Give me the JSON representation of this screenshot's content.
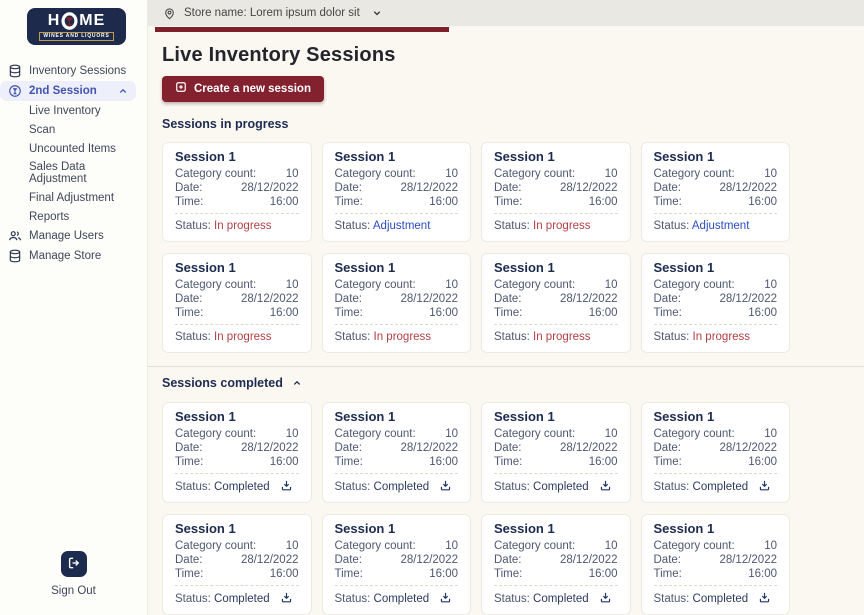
{
  "logo": {
    "title": "HOME",
    "subtitle": "WINES AND LIQUORS"
  },
  "header": {
    "store_label": "Store name: Lorem ipsum dolor sit"
  },
  "sidebar": {
    "items": [
      {
        "label": "Inventory Sessions",
        "icon": "database-icon"
      },
      {
        "label": "2nd Session",
        "icon": "session-icon",
        "active": true,
        "chevron": "up"
      },
      {
        "label": "Live Inventory",
        "child": true
      },
      {
        "label": "Scan",
        "child": true
      },
      {
        "label": "Uncounted Items",
        "child": true
      },
      {
        "label": "Sales Data Adjustment",
        "child": true
      },
      {
        "label": "Final Adjustment",
        "child": true
      },
      {
        "label": "Reports",
        "child": true
      },
      {
        "label": "Manage Users",
        "icon": "users-icon"
      },
      {
        "label": "Manage Store",
        "icon": "database-icon"
      }
    ],
    "sign_out_label": "Sign Out"
  },
  "main": {
    "title": "Live Inventory Sessions",
    "create_button_label": "Create a new session",
    "card_labels": {
      "category": "Category count:",
      "date": "Date:",
      "time": "Time:",
      "status": "Status:"
    },
    "sections": [
      {
        "title": "Sessions in progress",
        "collapsible": false,
        "cards": [
          {
            "title": "Session 1",
            "category": "10",
            "date": "28/12/2022",
            "time": "16:00",
            "status": "In progress",
            "status_type": "red",
            "download": false
          },
          {
            "title": "Session 1",
            "category": "10",
            "date": "28/12/2022",
            "time": "16:00",
            "status": "Adjustment",
            "status_type": "blue",
            "download": false
          },
          {
            "title": "Session 1",
            "category": "10",
            "date": "28/12/2022",
            "time": "16:00",
            "status": "In progress",
            "status_type": "red",
            "download": false
          },
          {
            "title": "Session 1",
            "category": "10",
            "date": "28/12/2022",
            "time": "16:00",
            "status": "Adjustment",
            "status_type": "blue",
            "download": false
          },
          {
            "title": "Session 1",
            "category": "10",
            "date": "28/12/2022",
            "time": "16:00",
            "status": "In progress",
            "status_type": "red",
            "download": false
          },
          {
            "title": "Session 1",
            "category": "10",
            "date": "28/12/2022",
            "time": "16:00",
            "status": "In progress",
            "status_type": "red",
            "download": false
          },
          {
            "title": "Session 1",
            "category": "10",
            "date": "28/12/2022",
            "time": "16:00",
            "status": "In progress",
            "status_type": "red",
            "download": false
          },
          {
            "title": "Session 1",
            "category": "10",
            "date": "28/12/2022",
            "time": "16:00",
            "status": "In progress",
            "status_type": "red",
            "download": false
          }
        ]
      },
      {
        "title": "Sessions completed",
        "collapsible": true,
        "cards": [
          {
            "title": "Session 1",
            "category": "10",
            "date": "28/12/2022",
            "time": "16:00",
            "status": "Completed",
            "status_type": "navy",
            "download": true
          },
          {
            "title": "Session 1",
            "category": "10",
            "date": "28/12/2022",
            "time": "16:00",
            "status": "Completed",
            "status_type": "navy",
            "download": true
          },
          {
            "title": "Session 1",
            "category": "10",
            "date": "28/12/2022",
            "time": "16:00",
            "status": "Completed",
            "status_type": "navy",
            "download": true
          },
          {
            "title": "Session 1",
            "category": "10",
            "date": "28/12/2022",
            "time": "16:00",
            "status": "Completed",
            "status_type": "navy",
            "download": true
          },
          {
            "title": "Session 1",
            "category": "10",
            "date": "28/12/2022",
            "time": "16:00",
            "status": "Completed",
            "status_type": "navy",
            "download": true
          },
          {
            "title": "Session 1",
            "category": "10",
            "date": "28/12/2022",
            "time": "16:00",
            "status": "Completed",
            "status_type": "navy",
            "download": true
          },
          {
            "title": "Session 1",
            "category": "10",
            "date": "28/12/2022",
            "time": "16:00",
            "status": "Completed",
            "status_type": "navy",
            "download": true
          },
          {
            "title": "Session 1",
            "category": "10",
            "date": "28/12/2022",
            "time": "16:00",
            "status": "Completed",
            "status_type": "navy",
            "download": true
          }
        ]
      }
    ]
  },
  "colors": {
    "maroon": "#7E1F2B",
    "button_maroon": "#83212E",
    "status_red": "#B23F45",
    "status_blue": "#2B4CC0",
    "navy": "#1D2B50",
    "active_blue": "#4354AE",
    "content_bg": "#FAF8F1",
    "topbar_bg": "#E9E8E2"
  }
}
